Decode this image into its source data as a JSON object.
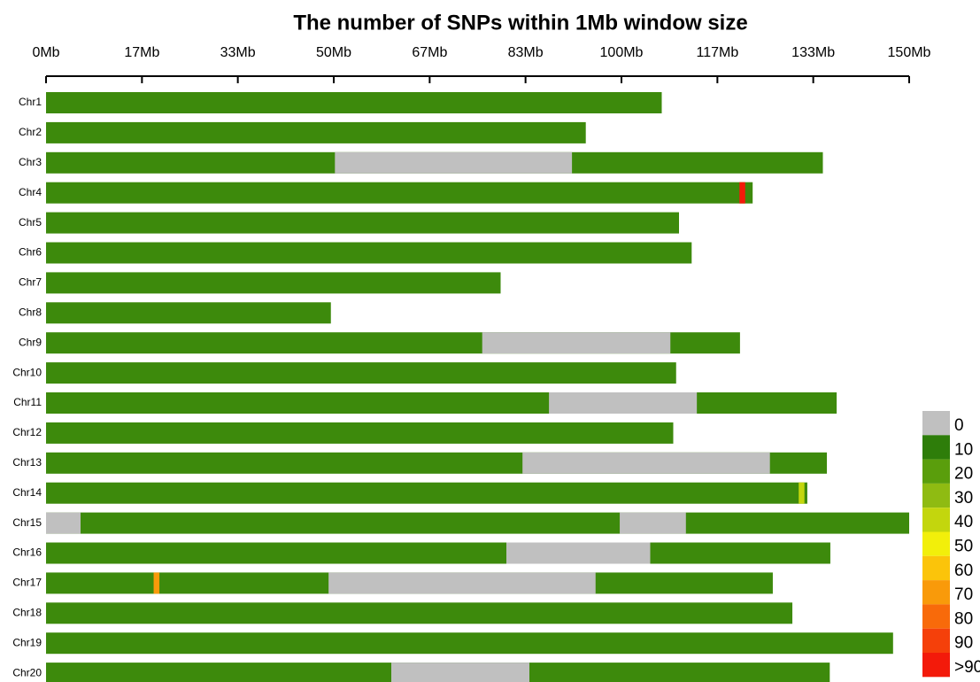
{
  "chart_data": {
    "type": "chromosome-density",
    "title": "The number of SNPs within 1Mb window size",
    "xlim": [
      0,
      150
    ],
    "xticks": [
      {
        "value": 0,
        "label": "0Mb"
      },
      {
        "value": 16.67,
        "label": "17Mb"
      },
      {
        "value": 33.33,
        "label": "33Mb"
      },
      {
        "value": 50,
        "label": "50Mb"
      },
      {
        "value": 66.67,
        "label": "67Mb"
      },
      {
        "value": 83.33,
        "label": "83Mb"
      },
      {
        "value": 100,
        "label": "100Mb"
      },
      {
        "value": 116.67,
        "label": "117Mb"
      },
      {
        "value": 133.33,
        "label": "133Mb"
      },
      {
        "value": 150,
        "label": "150Mb"
      }
    ],
    "fill_color": "#3d8a0c",
    "gap_color": "#c0c0c0",
    "chromosomes": [
      {
        "name": "Chr1",
        "length": 107,
        "gaps": [],
        "peaks": []
      },
      {
        "name": "Chr2",
        "length": 93.8,
        "gaps": [],
        "peaks": []
      },
      {
        "name": "Chr3",
        "length": 135,
        "gaps": [
          [
            50.2,
            91.4
          ]
        ],
        "peaks": []
      },
      {
        "name": "Chr4",
        "length": 122.8,
        "gaps": [],
        "peaks": [
          {
            "start": 120.5,
            "end": 121.5,
            "color": "#f31a0a"
          }
        ]
      },
      {
        "name": "Chr5",
        "length": 110,
        "gaps": [],
        "peaks": []
      },
      {
        "name": "Chr6",
        "length": 112.2,
        "gaps": [],
        "peaks": []
      },
      {
        "name": "Chr7",
        "length": 79,
        "gaps": [],
        "peaks": []
      },
      {
        "name": "Chr8",
        "length": 49.5,
        "gaps": [],
        "peaks": []
      },
      {
        "name": "Chr9",
        "length": 120.6,
        "gaps": [
          [
            75.8,
            108.5
          ]
        ],
        "peaks": []
      },
      {
        "name": "Chr10",
        "length": 109.5,
        "gaps": [],
        "peaks": []
      },
      {
        "name": "Chr11",
        "length": 137.4,
        "gaps": [
          [
            87.4,
            113.1
          ]
        ],
        "peaks": []
      },
      {
        "name": "Chr12",
        "length": 109,
        "gaps": [],
        "peaks": []
      },
      {
        "name": "Chr13",
        "length": 135.7,
        "gaps": [
          [
            82.8,
            125.8
          ]
        ],
        "peaks": []
      },
      {
        "name": "Chr14",
        "length": 132.3,
        "gaps": [],
        "peaks": [
          {
            "start": 130.8,
            "end": 131.8,
            "color": "#c3d60d"
          }
        ]
      },
      {
        "name": "Chr15",
        "length": 150,
        "gaps": [
          [
            0,
            6
          ],
          [
            99.7,
            111.2
          ]
        ],
        "peaks": []
      },
      {
        "name": "Chr16",
        "length": 136.3,
        "gaps": [
          [
            80,
            105
          ]
        ],
        "peaks": []
      },
      {
        "name": "Chr17",
        "length": 126.3,
        "gaps": [
          [
            49.1,
            95.5
          ]
        ],
        "peaks": [
          {
            "start": 18.7,
            "end": 19.7,
            "color": "#f99a0a"
          }
        ]
      },
      {
        "name": "Chr18",
        "length": 129.7,
        "gaps": [],
        "peaks": []
      },
      {
        "name": "Chr19",
        "length": 147.2,
        "gaps": [],
        "peaks": []
      },
      {
        "name": "Chr20",
        "length": 136.2,
        "gaps": [
          [
            60,
            84
          ]
        ],
        "peaks": []
      }
    ],
    "legend": {
      "labels": [
        "0",
        "10",
        "20",
        "30",
        "40",
        "50",
        "60",
        "70",
        "80",
        "90",
        ">90"
      ],
      "colors": [
        "#c0c0c0",
        "#2e7d0a",
        "#5a9e0c",
        "#8fbb12",
        "#c3d60d",
        "#f2ef0a",
        "#fbc40a",
        "#f99a0a",
        "#f86a0a",
        "#f5400a",
        "#f31a0a"
      ]
    }
  }
}
